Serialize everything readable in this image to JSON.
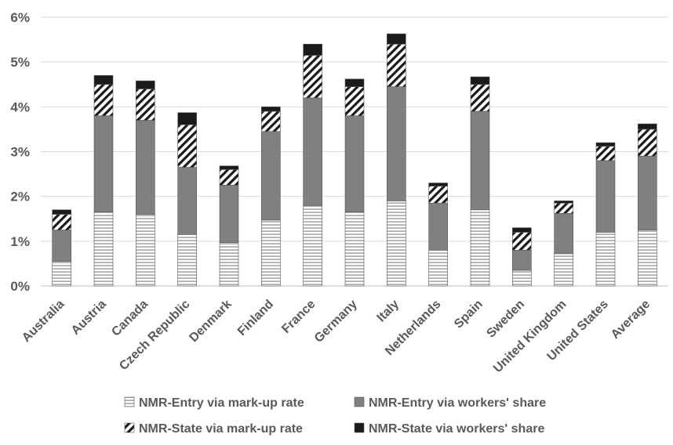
{
  "chart_data": {
    "type": "bar",
    "stacked": true,
    "categories": [
      "Australia",
      "Austria",
      "Canada",
      "Czech Republic",
      "Denmark",
      "Finland",
      "France",
      "Germany",
      "Italy",
      "Netherlands",
      "Spain",
      "Sweden",
      "United Kingdom",
      "United States",
      "Average"
    ],
    "series": [
      {
        "name": "NMR-Entry via mark-up rate",
        "pattern": "horizontal-stripes",
        "color": "#ffffff",
        "values": [
          0.55,
          1.65,
          1.6,
          1.15,
          0.97,
          1.47,
          1.8,
          1.65,
          1.9,
          0.8,
          1.7,
          0.35,
          0.72,
          1.2,
          1.25
        ]
      },
      {
        "name": "NMR-Entry via workers' share",
        "pattern": "solid",
        "color": "#808080",
        "values": [
          0.7,
          2.15,
          2.1,
          1.5,
          1.28,
          1.98,
          2.4,
          2.15,
          2.55,
          1.05,
          2.2,
          0.45,
          0.9,
          1.6,
          1.65
        ]
      },
      {
        "name": "NMR-State via mark-up rate",
        "pattern": "diagonal-hatch",
        "color": "#ffffff",
        "values": [
          0.35,
          0.7,
          0.7,
          0.95,
          0.35,
          0.45,
          0.95,
          0.65,
          0.95,
          0.38,
          0.6,
          0.4,
          0.23,
          0.32,
          0.6
        ]
      },
      {
        "name": "NMR-State via workers' share",
        "pattern": "solid",
        "color": "#1a1a1a",
        "values": [
          0.1,
          0.2,
          0.18,
          0.27,
          0.08,
          0.1,
          0.25,
          0.17,
          0.23,
          0.07,
          0.17,
          0.1,
          0.05,
          0.08,
          0.12
        ]
      }
    ],
    "y_ticks": [
      "0%",
      "1%",
      "2%",
      "3%",
      "4%",
      "5%",
      "6%"
    ],
    "ylim": [
      0,
      6
    ],
    "y_unit": "%",
    "grid": "horizontal",
    "legend_position": "bottom",
    "colors": {
      "axis_text": "#595959",
      "grid": "#d9d9d9",
      "stripe": "#9a9a9a",
      "hatch": "#1a1a1a"
    }
  }
}
